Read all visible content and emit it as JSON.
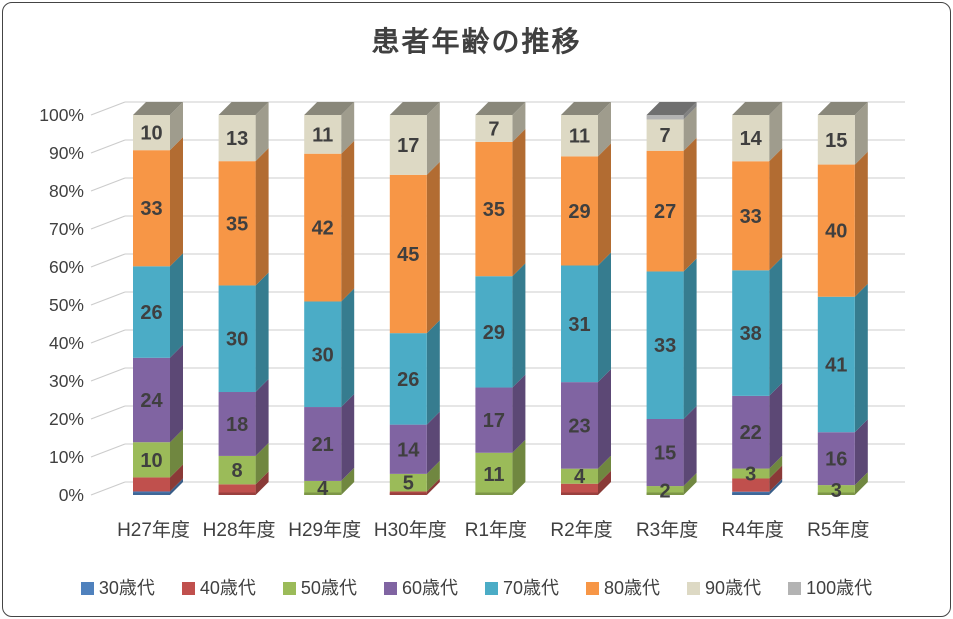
{
  "title": "患者年齢の推移",
  "chart_data": {
    "type": "bar",
    "variant": "3d-column",
    "stacking": "percent",
    "title": "患者年齢の推移",
    "categories": [
      "H27年度",
      "H28年度",
      "H29年度",
      "H30年度",
      "R1年度",
      "R2年度",
      "R3年度",
      "R4年度",
      "R5年度"
    ],
    "series": [
      {
        "name": "30歳代",
        "color": "#4F81BD",
        "labeled": false,
        "values": [
          1,
          0,
          0,
          0,
          0,
          0,
          0,
          1,
          0
        ]
      },
      {
        "name": "40歳代",
        "color": "#C0504D",
        "labeled": false,
        "values": [
          4,
          3,
          0,
          1,
          0,
          3,
          0,
          4,
          0
        ]
      },
      {
        "name": "50歳代",
        "color": "#9BBB59",
        "labeled": true,
        "values": [
          10,
          8,
          4,
          5,
          11,
          4,
          2,
          3,
          3
        ]
      },
      {
        "name": "60歳代",
        "color": "#8064A2",
        "labeled": true,
        "values": [
          24,
          18,
          21,
          14,
          17,
          23,
          15,
          22,
          16
        ]
      },
      {
        "name": "70歳代",
        "color": "#4BACC6",
        "labeled": true,
        "values": [
          26,
          30,
          30,
          26,
          29,
          31,
          33,
          38,
          41
        ]
      },
      {
        "name": "80歳代",
        "color": "#F79646",
        "labeled": true,
        "values": [
          33,
          35,
          42,
          45,
          35,
          29,
          27,
          33,
          40
        ]
      },
      {
        "name": "90歳代",
        "color": "#DDD9C4",
        "labeled": true,
        "values": [
          10,
          13,
          11,
          17,
          7,
          11,
          7,
          14,
          15
        ]
      },
      {
        "name": "100歳代",
        "color": "#B3B3B3",
        "labeled": false,
        "values": [
          0,
          0,
          0,
          0,
          0,
          0,
          1,
          0,
          0
        ]
      }
    ],
    "y_axis": {
      "ticks": [
        "0%",
        "10%",
        "20%",
        "30%",
        "40%",
        "50%",
        "60%",
        "70%",
        "80%",
        "90%",
        "100%"
      ],
      "min": 0,
      "max": 100,
      "unit": "percent"
    },
    "grid": true,
    "legend_position": "bottom"
  },
  "colors": {
    "text": "#404040",
    "data_label": "#3F3F3F",
    "gridline": "#D6D6D6",
    "depth_tick": "#CCCCCC",
    "frame_border": "#444444",
    "background": "#FFFFFF"
  }
}
